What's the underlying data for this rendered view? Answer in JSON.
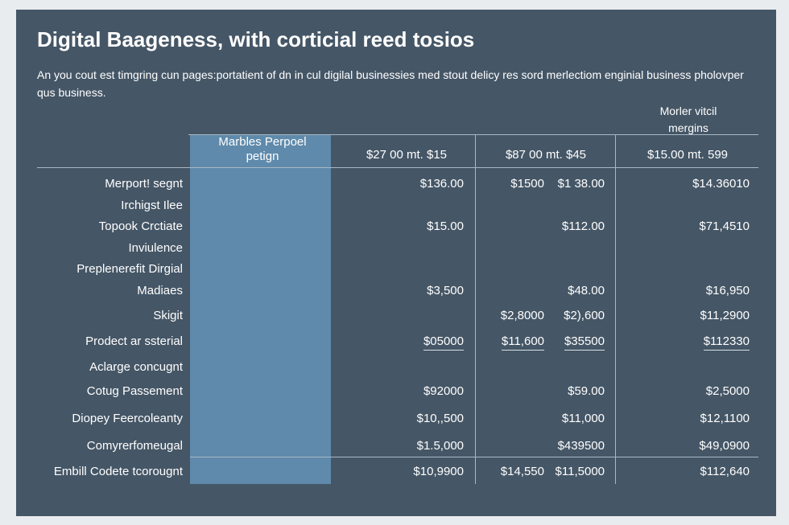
{
  "title": "Digital Baageness, with corticial reed tosios",
  "description": "An you cout est timgring cun pages:portatient of dn in cul digilal businessies med stout delicy res sord merlectiom enginial business pholovper qus business.",
  "note": "Morler vitcil mergins",
  "table": {
    "headers": [
      "Marbles Perpoel petign",
      "$27 00 mt. $15",
      "$87 00 mt. $45",
      "$15.00 mt. 599"
    ],
    "rows": [
      {
        "label": "Merport! segnt",
        "c1": "$136.00",
        "c2a": "$1500",
        "c2b": "$1 38.00",
        "c3": "$14.36010"
      },
      {
        "label": "Irchigst Ilee",
        "c1": "",
        "c2a": "",
        "c2b": "",
        "c3": ""
      },
      {
        "label": "Topook Crctiate",
        "c1": "$15.00",
        "c2a": "",
        "c2b": "$112.00",
        "c3": "$71,4510"
      },
      {
        "label": "Inviulence",
        "c1": "",
        "c2a": "",
        "c2b": "",
        "c3": ""
      },
      {
        "label": "Preplenerefit Dirgial",
        "c1": "",
        "c2a": "",
        "c2b": "",
        "c3": ""
      },
      {
        "label": "Madiaes",
        "c1": "$3,500",
        "c2a": "",
        "c2b": "$48.00",
        "c3": "$16,950"
      },
      {
        "label": "Skigit",
        "c1": "",
        "c2a": "$2,8000",
        "c2b": "$2),600",
        "c3": "$11,2900"
      },
      {
        "label": "Prodect ar ssterial",
        "c1": "$05000",
        "c2a": "$11,600",
        "c2b": "$35500",
        "c3": "$112330"
      },
      {
        "label": "Aclarge concugnt",
        "c1": "",
        "c2a": "",
        "c2b": "",
        "c3": ""
      },
      {
        "label": "Cotug Passement",
        "c1": "$92000",
        "c2a": "",
        "c2b": "$59.00",
        "c3": "$2,5000"
      },
      {
        "label": "Diopey Feercoleanty",
        "c1": "$10,,500",
        "c2a": "",
        "c2b": "$11,000",
        "c3": "$12,1100"
      },
      {
        "label": "Comyrerfomeugal",
        "c1": "$1.5,000",
        "c2a": "",
        "c2b": "$439500",
        "c3": "$49,0900"
      },
      {
        "label": "Embill Codete tcorougnt",
        "c1": "$10,9900",
        "c2a": "$14,550",
        "c2b": "$11,5000",
        "c3": "$112,640"
      }
    ]
  }
}
